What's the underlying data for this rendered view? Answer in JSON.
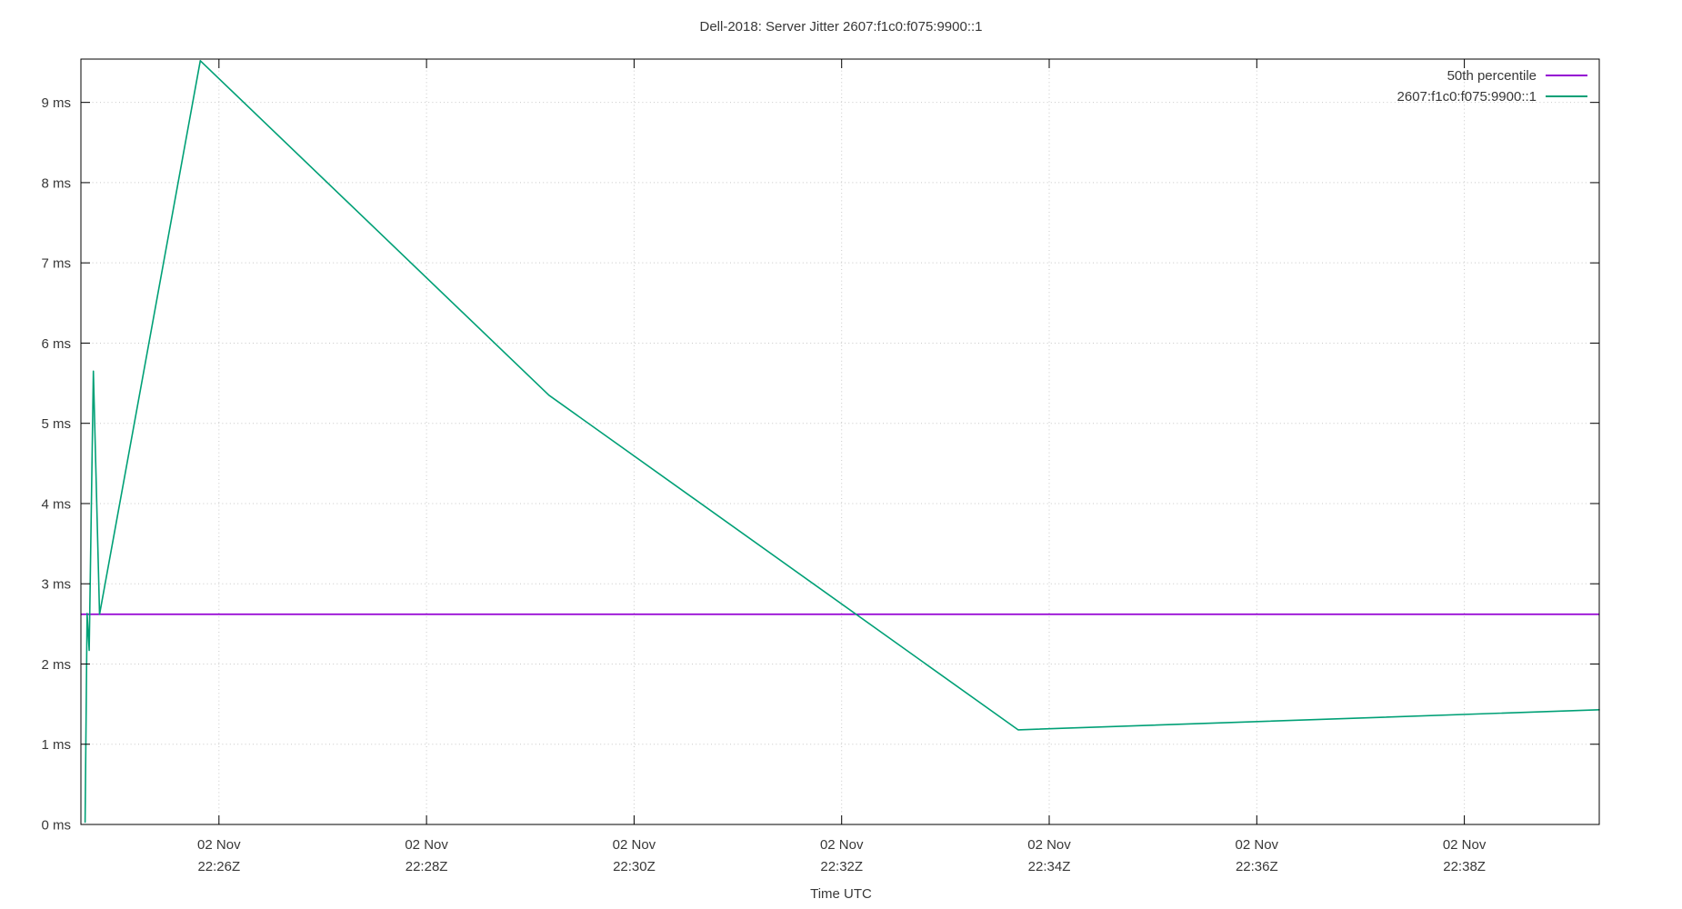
{
  "page": {
    "background_color": "#ffffff",
    "text_color": "#383838",
    "grid_color": "#c8c8c8",
    "border_color": "#000000"
  },
  "chart_data": {
    "type": "line",
    "title": "Dell-2018: Server Jitter 2607:f1c0:f075:9900::1",
    "xlabel": "Time UTC",
    "ylabel": "",
    "y_unit": "ms",
    "grid": true,
    "legend_position": "top-right-inside",
    "x_axis": {
      "range_minutes_past_2200": [
        24.67,
        39.3
      ],
      "ticks": [
        {
          "t": 26,
          "date": "02 Nov",
          "time": "22:26Z"
        },
        {
          "t": 28,
          "date": "02 Nov",
          "time": "22:28Z"
        },
        {
          "t": 30,
          "date": "02 Nov",
          "time": "22:30Z"
        },
        {
          "t": 32,
          "date": "02 Nov",
          "time": "22:32Z"
        },
        {
          "t": 34,
          "date": "02 Nov",
          "time": "22:34Z"
        },
        {
          "t": 36,
          "date": "02 Nov",
          "time": "22:36Z"
        },
        {
          "t": 38,
          "date": "02 Nov",
          "time": "22:38Z"
        }
      ]
    },
    "y_axis": {
      "range": [
        0,
        9.54
      ],
      "ticks": [
        {
          "v": 0,
          "label": "0 ms"
        },
        {
          "v": 1,
          "label": "1 ms"
        },
        {
          "v": 2,
          "label": "2 ms"
        },
        {
          "v": 3,
          "label": "3 ms"
        },
        {
          "v": 4,
          "label": "4 ms"
        },
        {
          "v": 5,
          "label": "5 ms"
        },
        {
          "v": 6,
          "label": "6 ms"
        },
        {
          "v": 7,
          "label": "7 ms"
        },
        {
          "v": 8,
          "label": "8 ms"
        },
        {
          "v": 9,
          "label": "9 ms"
        }
      ]
    },
    "series": [
      {
        "name": "50th percentile",
        "color": "#9400d3",
        "type": "hline",
        "value_ms": 2.62
      },
      {
        "name": "2607:f1c0:f075:9900::1",
        "color": "#00a076",
        "type": "line",
        "points": [
          {
            "time": "22:24:43Z",
            "t": 24.71,
            "ms": 0.03
          },
          {
            "time": "22:24:44Z",
            "t": 24.73,
            "ms": 2.63
          },
          {
            "time": "22:24:46Z",
            "t": 24.75,
            "ms": 2.17
          },
          {
            "time": "22:24:48Z",
            "t": 24.79,
            "ms": 5.65
          },
          {
            "time": "22:24:52Z",
            "t": 24.85,
            "ms": 2.62
          },
          {
            "time": "22:25:49Z",
            "t": 25.82,
            "ms": 9.52
          },
          {
            "time": "22:29:11Z",
            "t": 29.18,
            "ms": 5.35
          },
          {
            "time": "22:33:42Z",
            "t": 33.7,
            "ms": 1.18
          },
          {
            "time": "22:39:18Z",
            "t": 39.3,
            "ms": 1.43
          }
        ]
      }
    ]
  }
}
